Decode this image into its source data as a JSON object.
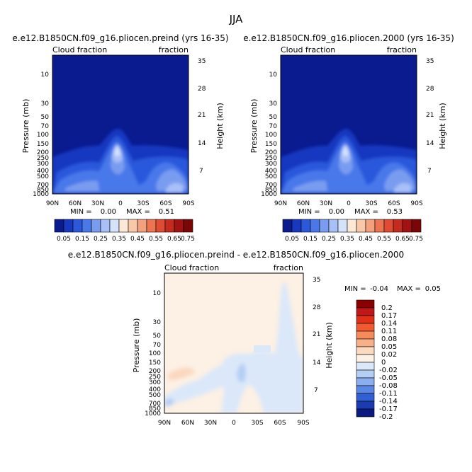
{
  "season": "JJA",
  "panels": [
    {
      "title": "e.e12.B1850CN.f09_g16.pliocen.preind (yrs 16-35)",
      "left_label": "Cloud fraction",
      "right_label": "fraction",
      "min_label": "MIN =",
      "min_value": "0.00",
      "max_label": "MAX =",
      "max_value": "0.51"
    },
    {
      "title": "e.e12.B1850CN.f09_g16.pliocen.2000 (yrs 16-35)",
      "left_label": "Cloud fraction",
      "right_label": "fraction",
      "min_label": "MIN =",
      "min_value": "0.00",
      "max_label": "MAX =",
      "max_value": "0.53"
    },
    {
      "title": "e.e12.B1850CN.f09_g16.pliocen.preind - e.e12.B1850CN.f09_g16.pliocen.2000",
      "left_label": "Cloud fraction",
      "right_label": "fraction",
      "min_label": "MIN =",
      "min_value": "-0.04",
      "max_label": "MAX =",
      "max_value": "0.05"
    }
  ],
  "chart_data": [
    {
      "type": "heatmap",
      "xlabel": "",
      "ylabel": "Pressure (mb)",
      "ylabel_right": "Height (km)",
      "x_ticks": [
        "90N",
        "60N",
        "30N",
        "0",
        "30S",
        "60S",
        "90S"
      ],
      "y_ticks": [
        "10",
        "30",
        "50",
        "70",
        "100",
        "150",
        "200",
        "250",
        "300",
        "400",
        "500",
        "700",
        "850",
        "1000"
      ],
      "y_ticks_right": [
        "35",
        "28",
        "21",
        "14",
        "7"
      ],
      "colorbar_labels": [
        "0.05",
        "0.15",
        "0.25",
        "0.35",
        "0.45",
        "0.55",
        "0.65",
        "0.75"
      ],
      "colorbar_colors": [
        "#0a1a8f",
        "#1838c0",
        "#2c58dc",
        "#4a78ea",
        "#7a9cf0",
        "#a8c0f6",
        "#d4e2fa",
        "#fbe8d6",
        "#f8c8a8",
        "#f3a07e",
        "#ec7452",
        "#de4c33",
        "#c52a1e",
        "#a11313",
        "#7a0606"
      ]
    },
    {
      "type": "heatmap",
      "xlabel": "",
      "ylabel": "Pressure (mb)",
      "ylabel_right": "Height (km)",
      "x_ticks": [
        "90N",
        "60N",
        "30N",
        "0",
        "30S",
        "60S",
        "90S"
      ],
      "y_ticks": [
        "10",
        "30",
        "50",
        "70",
        "100",
        "150",
        "200",
        "250",
        "300",
        "400",
        "500",
        "700",
        "850",
        "1000"
      ],
      "y_ticks_right": [
        "35",
        "28",
        "21",
        "14",
        "7"
      ],
      "colorbar_labels": [
        "0.05",
        "0.15",
        "0.25",
        "0.35",
        "0.45",
        "0.55",
        "0.65",
        "0.75"
      ],
      "colorbar_colors": [
        "#0a1a8f",
        "#1838c0",
        "#2c58dc",
        "#4a78ea",
        "#7a9cf0",
        "#a8c0f6",
        "#d4e2fa",
        "#fbe8d6",
        "#f8c8a8",
        "#f3a07e",
        "#ec7452",
        "#de4c33",
        "#c52a1e",
        "#a11313",
        "#7a0606"
      ]
    },
    {
      "type": "heatmap",
      "xlabel": "",
      "ylabel": "Pressure (mb)",
      "ylabel_right": "Height (km)",
      "x_ticks": [
        "90N",
        "60N",
        "30N",
        "0",
        "30S",
        "60S",
        "90S"
      ],
      "y_ticks": [
        "10",
        "30",
        "50",
        "70",
        "100",
        "150",
        "200",
        "250",
        "300",
        "400",
        "500",
        "700",
        "850",
        "1000"
      ],
      "y_ticks_right": [
        "35",
        "28",
        "21",
        "14",
        "7"
      ],
      "colorbar_labels": [
        "0.2",
        "0.17",
        "0.14",
        "0.11",
        "0.08",
        "0.05",
        "0.02",
        "0",
        "-0.02",
        "-0.05",
        "-0.08",
        "-0.11",
        "-0.14",
        "-0.17",
        "-0.2"
      ],
      "colorbar_colors": [
        "#8b0000",
        "#c01818",
        "#e03018",
        "#f05a30",
        "#f58a5a",
        "#f8b088",
        "#fbd8c0",
        "#fdf0e4",
        "#dbe8fa",
        "#b4cef4",
        "#8aaeee",
        "#5a86e4",
        "#3060d4",
        "#1a3cb0",
        "#0a1a80"
      ]
    }
  ]
}
